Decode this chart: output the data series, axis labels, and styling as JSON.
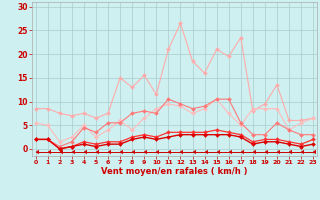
{
  "x": [
    0,
    1,
    2,
    3,
    4,
    5,
    6,
    7,
    8,
    9,
    10,
    11,
    12,
    13,
    14,
    15,
    16,
    17,
    18,
    19,
    20,
    21,
    22,
    23
  ],
  "series": [
    {
      "name": "line1_lightest",
      "color": "#ffaaaa",
      "lw": 0.8,
      "marker": "D",
      "ms": 2.0,
      "y": [
        8.5,
        8.5,
        7.5,
        7.0,
        7.5,
        6.5,
        7.5,
        15.0,
        13.0,
        15.5,
        11.5,
        21.0,
        26.5,
        18.5,
        16.0,
        21.0,
        19.5,
        23.5,
        8.0,
        9.5,
        13.5,
        6.0,
        6.0,
        6.5
      ]
    },
    {
      "name": "line2_light",
      "color": "#ffbbbb",
      "lw": 0.8,
      "marker": "D",
      "ms": 2.0,
      "y": [
        5.5,
        5.0,
        1.5,
        2.5,
        5.0,
        2.5,
        4.0,
        6.0,
        4.0,
        6.5,
        8.5,
        9.5,
        9.0,
        7.5,
        8.5,
        10.5,
        7.5,
        5.0,
        8.5,
        8.5,
        8.5,
        4.0,
        5.5,
        6.5
      ]
    },
    {
      "name": "line3_medium",
      "color": "#ff7777",
      "lw": 0.8,
      "marker": "D",
      "ms": 2.0,
      "y": [
        2.0,
        2.0,
        0.5,
        1.5,
        4.5,
        3.5,
        5.5,
        5.5,
        7.5,
        8.0,
        7.5,
        10.5,
        9.5,
        8.5,
        9.0,
        10.5,
        10.5,
        5.5,
        3.0,
        3.0,
        5.5,
        4.0,
        3.0,
        3.0
      ]
    },
    {
      "name": "line4_dark",
      "color": "#ff3333",
      "lw": 0.9,
      "marker": "D",
      "ms": 2.0,
      "y": [
        2.0,
        2.0,
        0.0,
        0.5,
        1.5,
        1.0,
        1.5,
        1.5,
        2.5,
        3.0,
        2.5,
        3.5,
        3.5,
        3.5,
        3.5,
        4.0,
        3.5,
        3.0,
        1.5,
        2.0,
        2.0,
        1.5,
        1.0,
        2.0
      ]
    },
    {
      "name": "line5_dark2",
      "color": "#dd0000",
      "lw": 1.0,
      "marker": "D",
      "ms": 2.0,
      "y": [
        2.0,
        2.0,
        0.0,
        0.5,
        1.0,
        0.5,
        1.0,
        1.0,
        2.0,
        2.5,
        2.0,
        2.5,
        3.0,
        3.0,
        3.0,
        3.0,
        3.0,
        2.5,
        1.0,
        1.5,
        1.5,
        1.0,
        0.5,
        1.0
      ]
    },
    {
      "name": "line6_bottom",
      "color": "#cc0000",
      "lw": 0.7,
      "marker": 4,
      "ms": 3.0,
      "y": [
        -0.7,
        -0.7,
        -0.7,
        -0.7,
        -0.7,
        -0.7,
        -0.7,
        -0.7,
        -0.7,
        -0.7,
        -0.7,
        -0.7,
        -0.7,
        -0.7,
        -0.7,
        -0.7,
        -0.7,
        -0.7,
        -0.7,
        -0.7,
        -0.7,
        -0.7,
        -0.7,
        -0.7
      ]
    }
  ],
  "xlim": [
    -0.3,
    23.3
  ],
  "ylim": [
    -1.5,
    31
  ],
  "yticks": [
    0,
    5,
    10,
    15,
    20,
    25,
    30
  ],
  "xticks": [
    0,
    1,
    2,
    3,
    4,
    5,
    6,
    7,
    8,
    9,
    10,
    11,
    12,
    13,
    14,
    15,
    16,
    17,
    18,
    19,
    20,
    21,
    22,
    23
  ],
  "xlabel": "Vent moyen/en rafales ( km/h )",
  "bg_color": "#cff0f0",
  "grid_color": "#aacccc",
  "tick_color": "#cc0000",
  "label_color": "#cc0000",
  "spine_color": "#aaaaaa"
}
